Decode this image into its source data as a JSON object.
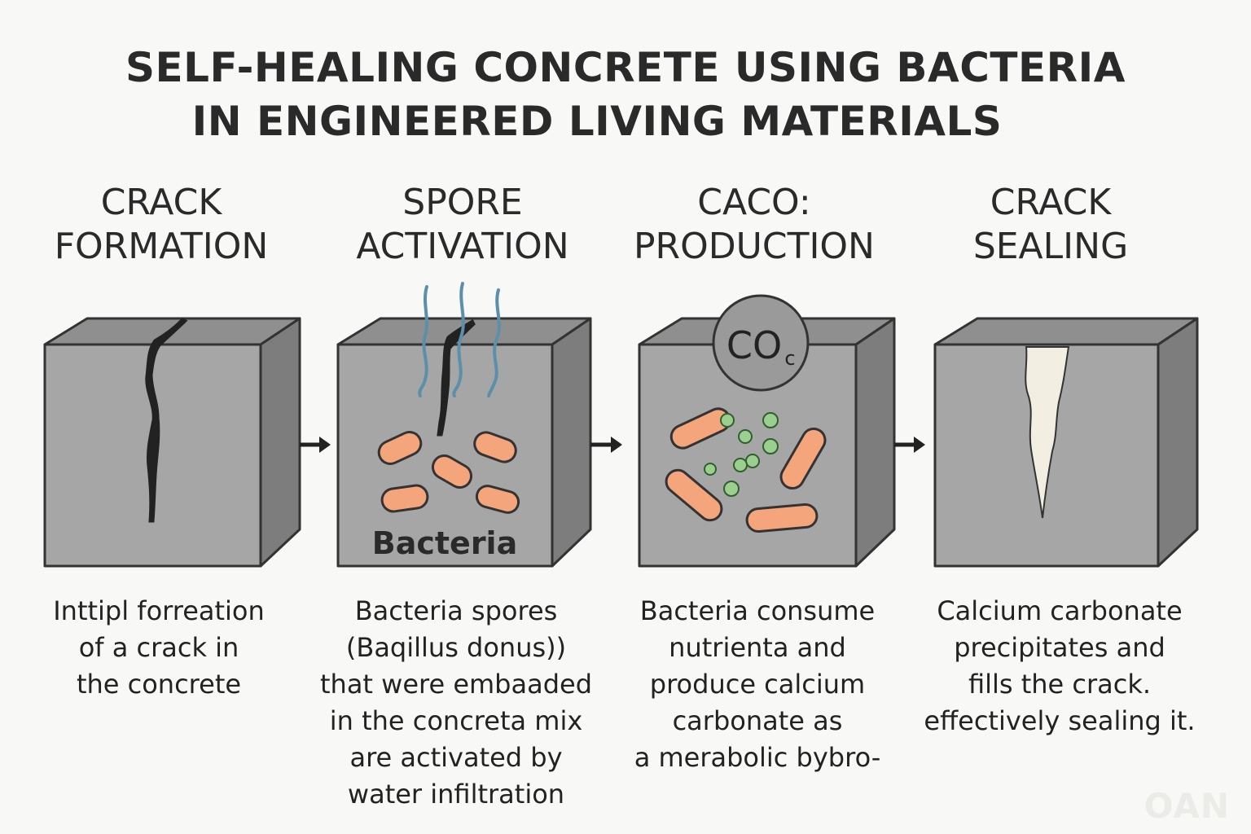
{
  "title": {
    "line1": "SELF-HEALING CONCRETE USING BACTERIA",
    "line2": "IN ENGINEERED LIVING MATERIALS"
  },
  "steps": [
    {
      "heading": [
        "CRACK",
        "FORMATION"
      ],
      "description": [
        "Inttipl forreation",
        "of a crack in",
        "the concrete"
      ]
    },
    {
      "heading": [
        "SPORE",
        "ACTIVATION"
      ],
      "block_label": "Bacteria",
      "description": [
        "Bacteria spores",
        "(Baqillus donus))",
        "that were embaaded",
        "in the concreta mix",
        "are activated by",
        "water infiltration"
      ]
    },
    {
      "heading": [
        "CACO:",
        "PRODUCTION"
      ],
      "circle_label": "CO",
      "circle_subscript": "c",
      "description": [
        "Bacteria consume",
        "nutrienta and",
        "produce calcium",
        "carbonate as",
        "a merabolic bybro-"
      ]
    },
    {
      "heading": [
        "CRACK",
        "SEALING"
      ],
      "description": [
        "Calcium carbonate",
        "precipitates and",
        "fills the crack.",
        "effectively sealing it."
      ]
    }
  ],
  "watermark": "OAN",
  "colors": {
    "concrete_front": "#a6a6a6",
    "concrete_top": "#8f8f8f",
    "concrete_side": "#7d7d7d",
    "outline": "#333333",
    "bacteria": "#f4a57c",
    "water": "#5b8faa",
    "crack": "#222222",
    "calcite_particle": "#9ccf8f",
    "sealed_crack": "#f2efe2"
  },
  "icons": [
    "right-arrow-icon",
    "right-arrow-icon",
    "right-arrow-icon"
  ]
}
